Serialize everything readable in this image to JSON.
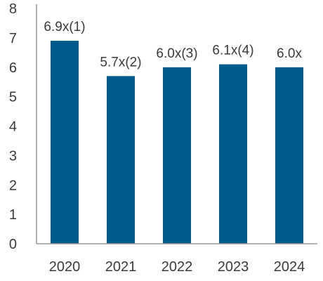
{
  "chart_data": {
    "type": "bar",
    "categories": [
      "2020",
      "2021",
      "2022",
      "2023",
      "2024"
    ],
    "values": [
      6.9,
      5.7,
      6.0,
      6.1,
      6.0
    ],
    "data_labels": [
      "6.9x(1)",
      "5.7x(2)",
      "6.0x(3)",
      "6.1x(4)",
      "6.0x"
    ],
    "ylim": [
      0,
      8
    ],
    "yticks": [
      "0",
      "1",
      "2",
      "3",
      "4",
      "5",
      "6",
      "7",
      "8"
    ],
    "title": "",
    "xlabel": "",
    "ylabel": "",
    "grid": false,
    "bar_color": "#005a8c",
    "axis_color": "#9a9a9a"
  }
}
